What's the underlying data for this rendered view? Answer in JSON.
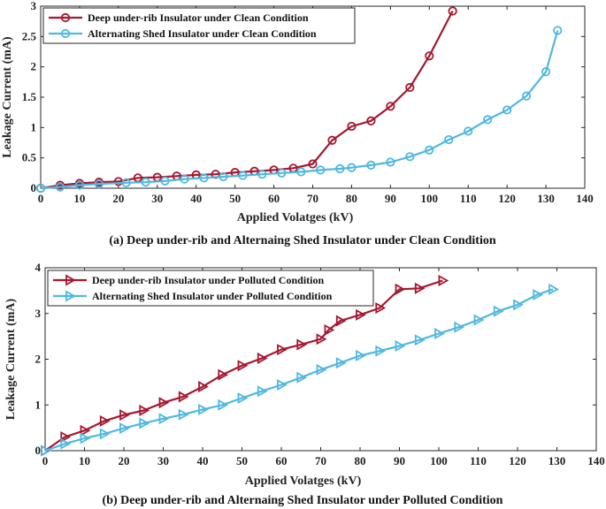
{
  "chart_data": [
    {
      "type": "line",
      "panel": "a",
      "caption": "(a) Deep under-rib and Alternaing Shed Insulator under Clean Condition",
      "xlabel": "Applied Volatges (kV)",
      "ylabel": "Leakage Current (mA)",
      "xlim": [
        0,
        140
      ],
      "ylim": [
        0,
        3
      ],
      "xticks": [
        0,
        10,
        20,
        30,
        40,
        50,
        60,
        70,
        80,
        90,
        100,
        110,
        120,
        130,
        140
      ],
      "yticks": [
        0,
        0.5,
        1,
        1.5,
        2,
        2.5,
        3
      ],
      "ytick_labels": [
        "0",
        "0.5",
        "1",
        "1.5",
        "2",
        "2.5",
        "3"
      ],
      "marker": "circle",
      "legend_position": "top-left",
      "series": [
        {
          "name": "Deep under-rib Insulator under Clean Condition",
          "color": "#a5182f",
          "x": [
            0,
            5,
            10,
            15,
            20,
            25,
            30,
            35,
            40,
            45,
            50,
            55,
            60,
            65,
            70,
            75,
            80,
            85,
            90,
            95,
            100,
            106
          ],
          "y": [
            0.0,
            0.05,
            0.08,
            0.1,
            0.11,
            0.17,
            0.18,
            0.2,
            0.22,
            0.23,
            0.26,
            0.28,
            0.3,
            0.33,
            0.4,
            0.79,
            1.02,
            1.11,
            1.35,
            1.66,
            2.18,
            2.92
          ]
        },
        {
          "name": "Alternating Shed Insulator under Clean Condition",
          "color": "#4fb8e0",
          "x": [
            0,
            5,
            10,
            15,
            22,
            27,
            32,
            37,
            42,
            47,
            52,
            57,
            62,
            67,
            72,
            77,
            80,
            85,
            90,
            95,
            100,
            105,
            110,
            115,
            120,
            125,
            130,
            133
          ],
          "y": [
            0.0,
            0.02,
            0.05,
            0.07,
            0.09,
            0.1,
            0.12,
            0.15,
            0.17,
            0.19,
            0.21,
            0.23,
            0.25,
            0.27,
            0.3,
            0.32,
            0.34,
            0.38,
            0.43,
            0.52,
            0.63,
            0.8,
            0.94,
            1.13,
            1.29,
            1.52,
            1.92,
            2.6
          ]
        }
      ]
    },
    {
      "type": "line",
      "panel": "b",
      "caption": "(b) Deep under-rib and Alternaing Shed Insulator under Polluted Condition",
      "xlabel": "Applied Volatges (kV)",
      "ylabel": "Leakage Current (mA)",
      "xlim": [
        0,
        140
      ],
      "ylim": [
        0,
        4
      ],
      "xticks": [
        0,
        10,
        20,
        30,
        40,
        50,
        60,
        70,
        80,
        90,
        100,
        110,
        120,
        130,
        140
      ],
      "yticks": [
        0,
        1,
        2,
        3,
        4
      ],
      "ytick_labels": [
        "0",
        "1",
        "2",
        "3",
        "4"
      ],
      "marker": "triangle-right",
      "legend_position": "top-left",
      "series": [
        {
          "name": "Deep under-rib Insulator under Polluted Condition",
          "color": "#a5182f",
          "x": [
            0,
            5,
            10,
            15,
            20,
            25,
            30,
            35,
            40,
            45,
            50,
            55,
            60,
            65,
            70,
            72,
            75,
            80,
            85,
            90,
            95,
            101
          ],
          "y": [
            0.0,
            0.3,
            0.44,
            0.65,
            0.78,
            0.88,
            1.05,
            1.18,
            1.4,
            1.66,
            1.86,
            2.02,
            2.21,
            2.32,
            2.44,
            2.64,
            2.84,
            2.97,
            3.12,
            3.53,
            3.55,
            3.72
          ]
        },
        {
          "name": "Alternating Shed Insulator under Polluted Condition",
          "color": "#4fb8e0",
          "x": [
            0,
            5,
            10,
            15,
            20,
            25,
            30,
            35,
            40,
            45,
            50,
            55,
            60,
            65,
            70,
            75,
            80,
            85,
            90,
            95,
            100,
            105,
            110,
            115,
            120,
            125,
            129
          ],
          "y": [
            0.0,
            0.15,
            0.27,
            0.37,
            0.49,
            0.6,
            0.7,
            0.79,
            0.9,
            1.0,
            1.15,
            1.3,
            1.44,
            1.6,
            1.77,
            1.92,
            2.08,
            2.18,
            2.29,
            2.42,
            2.56,
            2.7,
            2.86,
            3.05,
            3.19,
            3.41,
            3.53
          ]
        }
      ]
    }
  ]
}
